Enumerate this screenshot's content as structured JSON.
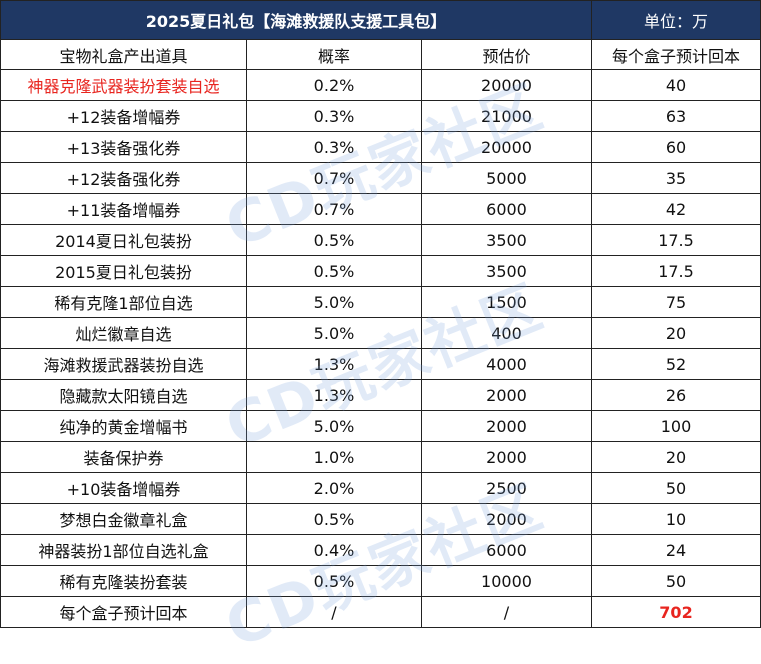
{
  "title": "2025夏日礼包【海滩救援队支援工具包】",
  "unit": "单位：万",
  "columns": [
    "宝物礼盒产出道具",
    "概率",
    "预估价",
    "每个盒子预计回本"
  ],
  "rows": [
    {
      "item": "神器克隆武器装扮套装自选",
      "prob": "0.2%",
      "price": "20000",
      "ret": "40"
    },
    {
      "item": "+12装备增幅券",
      "prob": "0.3%",
      "price": "21000",
      "ret": "63"
    },
    {
      "item": "+13装备强化券",
      "prob": "0.3%",
      "price": "20000",
      "ret": "60"
    },
    {
      "item": "+12装备强化券",
      "prob": "0.7%",
      "price": "5000",
      "ret": "35"
    },
    {
      "item": "+11装备增幅券",
      "prob": "0.7%",
      "price": "6000",
      "ret": "42"
    },
    {
      "item": "2014夏日礼包装扮",
      "prob": "0.5%",
      "price": "3500",
      "ret": "17.5"
    },
    {
      "item": "2015夏日礼包装扮",
      "prob": "0.5%",
      "price": "3500",
      "ret": "17.5"
    },
    {
      "item": "稀有克隆1部位自选",
      "prob": "5.0%",
      "price": "1500",
      "ret": "75"
    },
    {
      "item": "灿烂徽章自选",
      "prob": "5.0%",
      "price": "400",
      "ret": "20"
    },
    {
      "item": "海滩救援武器装扮自选",
      "prob": "1.3%",
      "price": "4000",
      "ret": "52"
    },
    {
      "item": "隐藏款太阳镜自选",
      "prob": "1.3%",
      "price": "2000",
      "ret": "26"
    },
    {
      "item": "纯净的黄金增幅书",
      "prob": "5.0%",
      "price": "2000",
      "ret": "100"
    },
    {
      "item": "装备保护券",
      "prob": "1.0%",
      "price": "2000",
      "ret": "20"
    },
    {
      "item": "+10装备增幅券",
      "prob": "2.0%",
      "price": "2500",
      "ret": "50"
    },
    {
      "item": "梦想白金徽章礼盒",
      "prob": "0.5%",
      "price": "2000",
      "ret": "10"
    },
    {
      "item": "神器装扮1部位自选礼盒",
      "prob": "0.4%",
      "price": "6000",
      "ret": "24"
    },
    {
      "item": "稀有克隆装扮套装",
      "prob": "0.5%",
      "price": "10000",
      "ret": "50"
    }
  ],
  "total": {
    "label": "每个盒子预计回本",
    "prob": "/",
    "price": "/",
    "value": "702"
  },
  "watermark": "CD玩家社区",
  "colors": {
    "header_bg": "#1f3864",
    "highlight_red": "#e8251f"
  }
}
